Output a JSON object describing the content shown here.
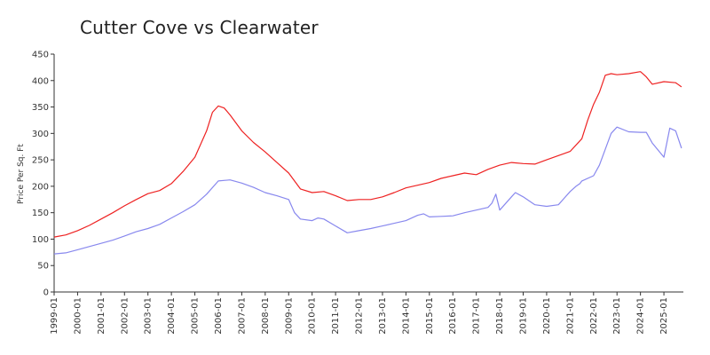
{
  "chart_data": {
    "type": "line",
    "title": "Cutter Cove vs Clearwater",
    "xlabel": "",
    "ylabel": "Price Per Sq. Ft",
    "ylim": [
      0,
      450
    ],
    "yticks": [
      0,
      50,
      100,
      150,
      200,
      250,
      300,
      350,
      400,
      450
    ],
    "xlim": [
      1999.0,
      2025.83
    ],
    "xticks": [
      "1999-01",
      "2000-01",
      "2001-01",
      "2002-01",
      "2003-01",
      "2004-01",
      "2005-01",
      "2006-01",
      "2007-01",
      "2008-01",
      "2009-01",
      "2010-01",
      "2011-01",
      "2012-01",
      "2013-01",
      "2014-01",
      "2015-01",
      "2016-01",
      "2017-01",
      "2018-01",
      "2019-01",
      "2020-01",
      "2021-01",
      "2022-01",
      "2023-01",
      "2024-01",
      "2025-01"
    ],
    "grid": false,
    "legend": "none",
    "series": [
      {
        "color": "#ee2222",
        "x": [
          "1999-01",
          "1999-07",
          "2000-01",
          "2000-07",
          "2001-01",
          "2001-07",
          "2002-01",
          "2002-07",
          "2003-01",
          "2003-07",
          "2004-01",
          "2004-07",
          "2005-01",
          "2005-07",
          "2005-10",
          "2006-01",
          "2006-04",
          "2006-07",
          "2007-01",
          "2007-07",
          "2008-01",
          "2008-07",
          "2009-01",
          "2009-07",
          "2010-01",
          "2010-07",
          "2011-01",
          "2011-07",
          "2012-01",
          "2012-07",
          "2013-01",
          "2013-07",
          "2014-01",
          "2014-07",
          "2015-01",
          "2015-07",
          "2016-01",
          "2016-07",
          "2017-01",
          "2017-07",
          "2018-01",
          "2018-07",
          "2019-01",
          "2019-07",
          "2020-01",
          "2020-07",
          "2021-01",
          "2021-07",
          "2021-10",
          "2022-01",
          "2022-04",
          "2022-07",
          "2022-10",
          "2023-01",
          "2023-07",
          "2024-01",
          "2024-04",
          "2024-07",
          "2025-01",
          "2025-07",
          "2025-10"
        ],
        "y": [
          104,
          108,
          116,
          126,
          138,
          150,
          163,
          175,
          186,
          192,
          205,
          228,
          255,
          305,
          340,
          352,
          348,
          335,
          305,
          283,
          265,
          245,
          225,
          195,
          188,
          190,
          182,
          173,
          175,
          175,
          180,
          188,
          197,
          202,
          207,
          215,
          220,
          225,
          222,
          232,
          240,
          245,
          243,
          242,
          250,
          258,
          266,
          290,
          325,
          355,
          378,
          410,
          413,
          411,
          413,
          417,
          407,
          393,
          398,
          396,
          388
        ]
      },
      {
        "color": "#8888ee",
        "x": [
          "1999-01",
          "1999-07",
          "2000-01",
          "2000-07",
          "2001-01",
          "2001-07",
          "2002-01",
          "2002-07",
          "2003-01",
          "2003-07",
          "2004-01",
          "2004-07",
          "2005-01",
          "2005-07",
          "2006-01",
          "2006-07",
          "2007-01",
          "2007-07",
          "2008-01",
          "2008-07",
          "2009-01",
          "2009-04",
          "2009-07",
          "2010-01",
          "2010-04",
          "2010-07",
          "2011-01",
          "2011-07",
          "2012-01",
          "2012-07",
          "2013-01",
          "2013-07",
          "2014-01",
          "2014-04",
          "2014-07",
          "2014-10",
          "2015-01",
          "2015-07",
          "2016-01",
          "2016-07",
          "2017-01",
          "2017-07",
          "2017-09",
          "2017-11",
          "2018-01",
          "2018-07",
          "2018-09",
          "2019-01",
          "2019-07",
          "2020-01",
          "2020-07",
          "2021-01",
          "2021-04",
          "2021-06",
          "2021-07",
          "2022-01",
          "2022-04",
          "2022-07",
          "2022-10",
          "2023-01",
          "2023-07",
          "2024-01",
          "2024-04",
          "2024-07",
          "2025-01",
          "2025-04",
          "2025-07",
          "2025-10"
        ],
        "y": [
          72,
          74,
          80,
          86,
          92,
          98,
          106,
          114,
          120,
          128,
          140,
          152,
          165,
          185,
          210,
          212,
          206,
          198,
          188,
          182,
          175,
          150,
          138,
          135,
          140,
          138,
          125,
          112,
          116,
          120,
          125,
          130,
          135,
          140,
          145,
          148,
          142,
          143,
          144,
          150,
          155,
          160,
          168,
          185,
          155,
          180,
          188,
          180,
          165,
          162,
          165,
          190,
          200,
          205,
          210,
          220,
          240,
          270,
          300,
          312,
          303,
          302,
          302,
          282,
          255,
          310,
          305,
          272
        ]
      }
    ]
  }
}
